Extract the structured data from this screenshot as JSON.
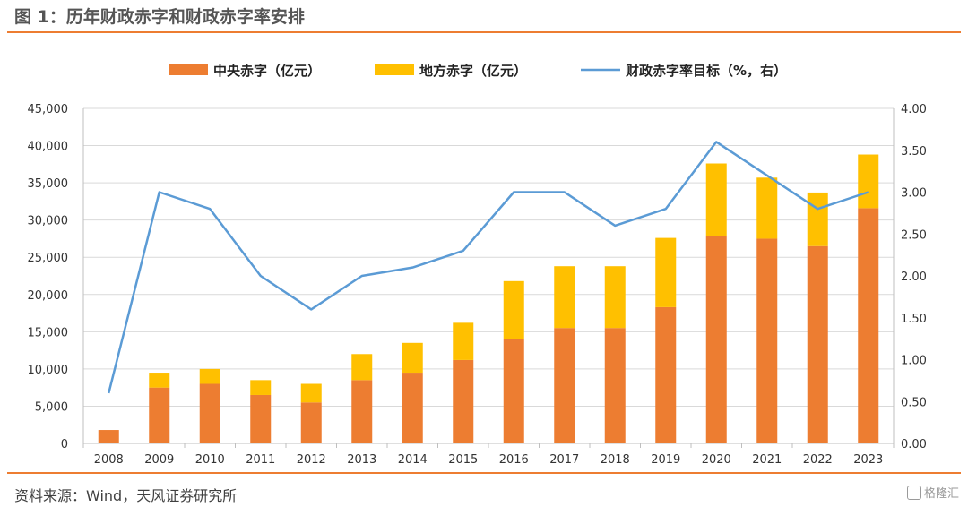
{
  "header": {
    "title": "图 1：历年财政赤字和财政赤字率安排"
  },
  "footer": {
    "source": "资料来源：Wind，天风证券研究所",
    "watermark": "格隆汇"
  },
  "colors": {
    "central": "#ED7D31",
    "local": "#FFC000",
    "line": "#5B9BD5",
    "rule": "#ED7D31",
    "grid": "#D9D9D9"
  },
  "chart_data": {
    "type": "bar",
    "stacked": true,
    "categories": [
      "2008",
      "2009",
      "2010",
      "2011",
      "2012",
      "2013",
      "2014",
      "2015",
      "2016",
      "2017",
      "2018",
      "2019",
      "2020",
      "2021",
      "2022",
      "2023"
    ],
    "series": [
      {
        "name": "中央赤字（亿元）",
        "axis": "left",
        "values": [
          1800,
          7500,
          8000,
          6500,
          5500,
          8500,
          9500,
          11200,
          14000,
          15500,
          15500,
          18300,
          27800,
          27500,
          26500,
          31600
        ]
      },
      {
        "name": "地方赤字（亿元）",
        "axis": "left",
        "values": [
          0,
          2000,
          2000,
          2000,
          2500,
          3500,
          4000,
          5000,
          7800,
          8300,
          8300,
          9300,
          9800,
          8200,
          7200,
          7200
        ]
      },
      {
        "name": "财政赤字率目标（%，右）",
        "axis": "right",
        "type": "line",
        "values": [
          0.6,
          3.0,
          2.8,
          2.0,
          1.6,
          2.0,
          2.1,
          2.3,
          3.0,
          3.0,
          2.6,
          2.8,
          3.6,
          3.2,
          2.8,
          3.0
        ]
      }
    ],
    "y_left": {
      "min": 0,
      "max": 45000,
      "ticks": [
        "0",
        "5,000",
        "10,000",
        "15,000",
        "20,000",
        "25,000",
        "30,000",
        "35,000",
        "40,000",
        "45,000"
      ]
    },
    "y_right": {
      "min": 0,
      "max": 4,
      "ticks": [
        "0.00",
        "0.50",
        "1.00",
        "1.50",
        "2.00",
        "2.50",
        "3.00",
        "3.50",
        "4.00"
      ]
    },
    "grid": true,
    "legend": "top"
  }
}
